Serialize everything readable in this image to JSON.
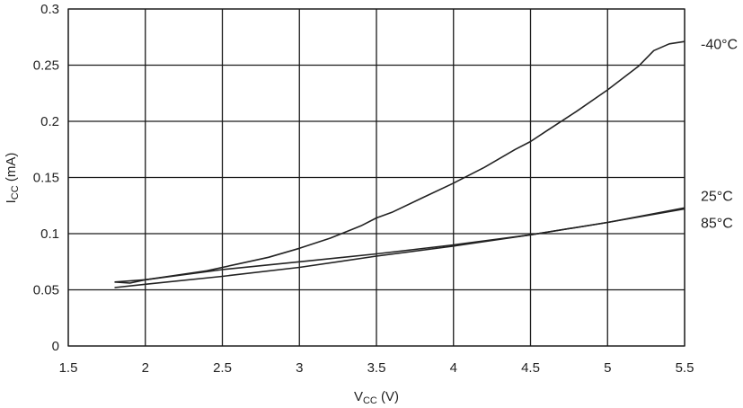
{
  "chart_data": {
    "type": "line",
    "title": "",
    "xlabel": {
      "main": "V",
      "sub": "CC",
      "unit": " (V)"
    },
    "ylabel": {
      "main": "I",
      "sub": "CC",
      "unit": " (mA)"
    },
    "xlim": [
      1.5,
      5.5
    ],
    "ylim": [
      0,
      0.3
    ],
    "xticks": [
      1.5,
      2,
      2.5,
      3,
      3.5,
      4,
      4.5,
      5,
      5.5
    ],
    "xtick_labels": [
      "1.5",
      "2",
      "2.5",
      "3",
      "3.5",
      "4",
      "4.5",
      "5",
      "5.5"
    ],
    "yticks": [
      0,
      0.05,
      0.1,
      0.15,
      0.2,
      0.25,
      0.3
    ],
    "ytick_labels": [
      "0",
      "0.05",
      "0.1",
      "0.15",
      "0.2",
      "0.25",
      "0.3"
    ],
    "grid": true,
    "legend": "labels at right end of lines",
    "line_color": "#222222",
    "grid_color": "#1a1a1a",
    "series": [
      {
        "name": "-40°C",
        "x": [
          1.8,
          2.0,
          2.2,
          2.4,
          2.6,
          2.8,
          3.0,
          3.2,
          3.4,
          3.5,
          3.6,
          3.8,
          4.0,
          4.2,
          4.4,
          4.5,
          4.6,
          4.8,
          5.0,
          5.2,
          5.3,
          5.4,
          5.5
        ],
        "y": [
          0.057,
          0.059,
          0.063,
          0.067,
          0.073,
          0.079,
          0.087,
          0.096,
          0.107,
          0.114,
          0.119,
          0.132,
          0.145,
          0.159,
          0.175,
          0.182,
          0.191,
          0.209,
          0.228,
          0.249,
          0.263,
          0.269,
          0.271
        ]
      },
      {
        "name": "25°C",
        "x": [
          1.8,
          1.9,
          2.0,
          2.5,
          3.0,
          3.5,
          4.0,
          4.5,
          5.0,
          5.5
        ],
        "y": [
          0.057,
          0.056,
          0.059,
          0.068,
          0.075,
          0.082,
          0.09,
          0.099,
          0.11,
          0.122
        ]
      },
      {
        "name": "85°C",
        "x": [
          1.8,
          2.0,
          2.5,
          3.0,
          3.5,
          4.0,
          4.5,
          5.0,
          5.5
        ],
        "y": [
          0.052,
          0.055,
          0.062,
          0.07,
          0.08,
          0.089,
          0.099,
          0.11,
          0.123
        ]
      }
    ]
  }
}
